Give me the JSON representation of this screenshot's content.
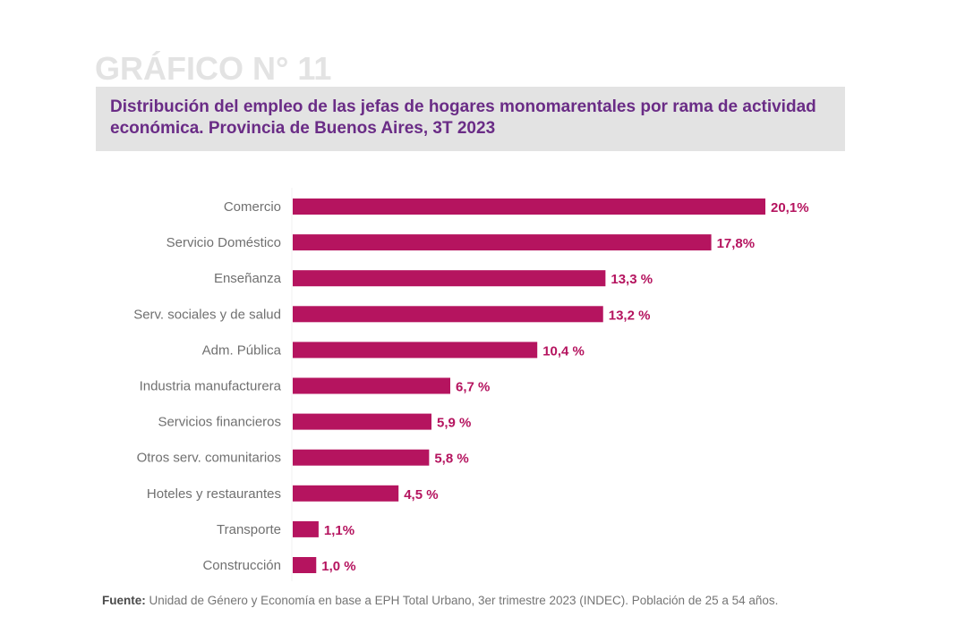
{
  "header": {
    "grafico_label": "GRÁFICO N° 11",
    "title": "Distribución del empleo de las jefas de hogares monomarentales por rama de actividad económica. Provincia de Buenos Aires, 3T 2023"
  },
  "colors": {
    "bar": "#b5145f",
    "value_label": "#b5145f",
    "title": "#6a2c86",
    "title_box": "#e3e3e3"
  },
  "chart_data": {
    "type": "bar",
    "orientation": "horizontal",
    "title": "Distribución del empleo de las jefas de hogares monomarentales por rama de actividad económica. Provincia de Buenos Aires, 3T 2023",
    "xlabel": "",
    "ylabel": "",
    "xlim": [
      0,
      20.1
    ],
    "grid": false,
    "categories": [
      "Comercio",
      "Servicio Doméstico",
      "Enseñanza",
      "Serv. sociales y de salud",
      "Adm. Pública",
      "Industria manufacturera",
      "Servicios financieros",
      "Otros serv. comunitarios",
      "Hoteles y restaurantes",
      "Transporte",
      "Construcción"
    ],
    "values": [
      20.1,
      17.8,
      13.3,
      13.2,
      10.4,
      6.7,
      5.9,
      5.8,
      4.5,
      1.1,
      1.0
    ],
    "data_labels": [
      "20,1%",
      "17,8%",
      "13,3 %",
      "13,2 %",
      "10,4 %",
      "6,7 %",
      "5,9 %",
      "5,8 %",
      "4,5 %",
      "1,1%",
      "1,0 %"
    ],
    "unit": "%"
  },
  "footer": {
    "source_label": "Fuente:",
    "source_text": " Unidad de Género y Economía en base a EPH Total Urbano, 3er trimestre 2023 (INDEC). Población de 25 a 54 años."
  }
}
